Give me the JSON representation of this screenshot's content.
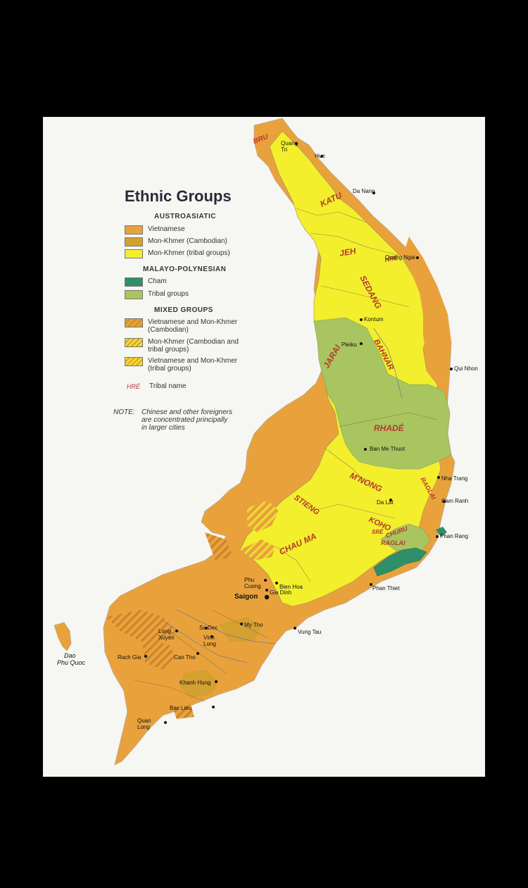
{
  "legend": {
    "title": "Ethnic Groups",
    "sections": [
      {
        "heading": "AUSTROASIATIC",
        "items": [
          {
            "label": "Vietnamese",
            "color": "#e9a23b"
          },
          {
            "label": "Mon-Khmer (Cambodian)",
            "color": "#d4a030"
          },
          {
            "label": "Mon-Khmer (tribal groups)",
            "color": "#f3ef2c"
          }
        ]
      },
      {
        "heading": "MALAYO-POLYNESIAN",
        "items": [
          {
            "label": "Cham",
            "color": "#2f8f6a"
          },
          {
            "label": "Tribal groups",
            "color": "#a8c560"
          }
        ]
      },
      {
        "heading": "MIXED GROUPS",
        "items": [
          {
            "label": "Vietnamese and Mon-Khmer (Cambodian)",
            "line1": "Vietnamese and Mon-Khmer",
            "line2": "(Cambodian)"
          },
          {
            "label": "Mon-Khmer (Cambodian and tribal groups)",
            "line1": "Mon-Khmer (Cambodian and",
            "line2": "tribal groups)"
          },
          {
            "label": "Vietnamese and Mon-Khmer (tribal groups)",
            "line1": "Vietnamese and Mon-Khmer",
            "line2": "(tribal groups)"
          }
        ]
      }
    ],
    "tribal_name_sample": "HRÉ",
    "tribal_name_label": "Tribal name",
    "note_prefix": "NOTE:",
    "note_lines": [
      "Chinese and other foreigners",
      "are concentrated principally",
      "in larger cities"
    ]
  },
  "tribes": [
    "BRU",
    "KATU",
    "JEH",
    "HRÉ",
    "SEDANG",
    "BAHNAR",
    "JARAI",
    "RHADÉ",
    "M'NONG",
    "STIENG",
    "KOHO",
    "SRÉ",
    "CHURU",
    "RAGLAI",
    "RAGLAI",
    "CHAU MA"
  ],
  "cities": [
    "Quang Tri",
    "Hue",
    "Da Nang",
    "Quang Ngai",
    "Kontum",
    "Pleiku",
    "Qui Nhon",
    "Ban Me Thuot",
    "Nha Trang",
    "Cam Ranh",
    "Da Lat",
    "Phan Rang",
    "Phan Thiet",
    "Bien Hoa",
    "Phu Cuong",
    "Gia Dinh",
    "Saigon",
    "Vung Tau",
    "My Tho",
    "Sa Dec",
    "Vinh Long",
    "Long Xuyen",
    "Can Tho",
    "Rach Gia",
    "Khanh Hung",
    "Bac Lieu",
    "Quan Long"
  ],
  "island": {
    "line1": "Dao",
    "line2": "Phu Quoc"
  },
  "colors": {
    "vietnamese": "#e9a23b",
    "mon_khmer_cambodian": "#d4a030",
    "mon_khmer_tribal": "#f3ef2c",
    "cham": "#2f8f6a",
    "malayo_tribal": "#a8c560",
    "tribe_label": "#b53a2c",
    "tribal_name_sample": "#c0334a"
  }
}
